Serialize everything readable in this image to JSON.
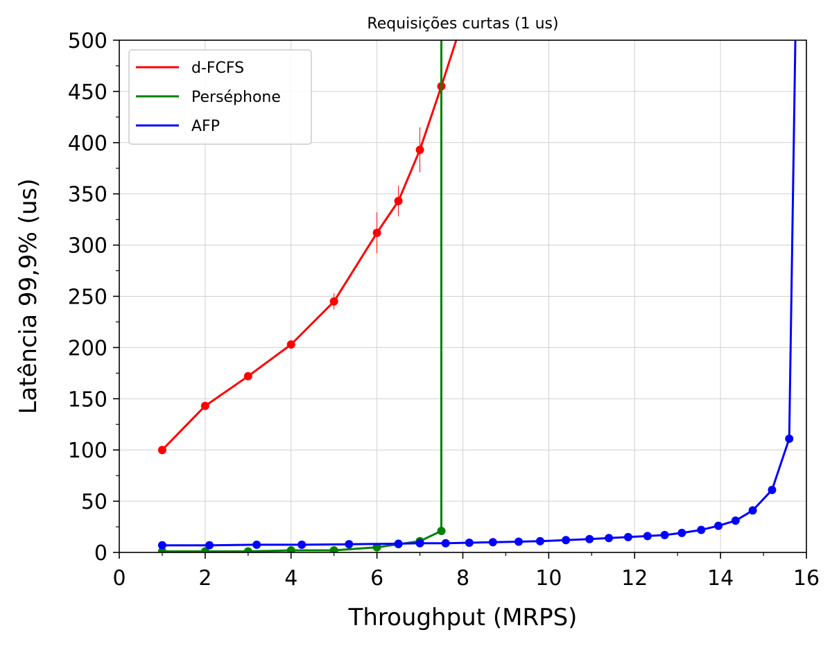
{
  "chart_data": {
    "type": "line",
    "title": "Requisições curtas (1 us)",
    "xlabel": "Throughput (MRPS)",
    "ylabel": "Latência 99,9% (us)",
    "xlim": [
      0,
      16
    ],
    "ylim": [
      0,
      500
    ],
    "xticks": [
      "0",
      "2",
      "4",
      "6",
      "8",
      "10",
      "12",
      "14",
      "16"
    ],
    "yticks": [
      "0",
      "50",
      "100",
      "150",
      "200",
      "250",
      "300",
      "350",
      "400",
      "450",
      "500"
    ],
    "grid": true,
    "legend_position": "top-left",
    "series": [
      {
        "name": "d-FCFS",
        "color": "#ff0000",
        "x": [
          1.0,
          2.0,
          3.0,
          4.0,
          5.0,
          6.0,
          6.5,
          7.0,
          7.5,
          8.0
        ],
        "y": [
          100,
          143,
          172,
          203,
          245,
          312,
          343,
          393,
          455,
          520
        ],
        "err": [
          0,
          0,
          0,
          0,
          8,
          20,
          15,
          22,
          0,
          20
        ]
      },
      {
        "name": "Perséphone",
        "color": "#008000",
        "x": [
          1.0,
          2.0,
          3.0,
          4.0,
          5.0,
          6.0,
          6.5,
          7.0,
          7.5,
          7.5
        ],
        "y": [
          1,
          1,
          1,
          2,
          2,
          5,
          8,
          11,
          21,
          520
        ],
        "err": []
      },
      {
        "name": "AFP",
        "color": "#0000ff",
        "x": [
          1.0,
          2.1,
          3.2,
          4.25,
          5.35,
          6.5,
          7.0,
          7.6,
          8.15,
          8.7,
          9.3,
          9.8,
          10.4,
          10.95,
          11.4,
          11.85,
          12.3,
          12.7,
          13.1,
          13.55,
          13.95,
          14.35,
          14.75,
          15.2,
          15.6,
          15.75
        ],
        "y": [
          7,
          7,
          7.5,
          7.5,
          8,
          8.5,
          9,
          9,
          9.5,
          10,
          10.5,
          11,
          12,
          13,
          14,
          15,
          16,
          17,
          19,
          22,
          26,
          31,
          41,
          61,
          111,
          520
        ],
        "err": []
      }
    ]
  }
}
